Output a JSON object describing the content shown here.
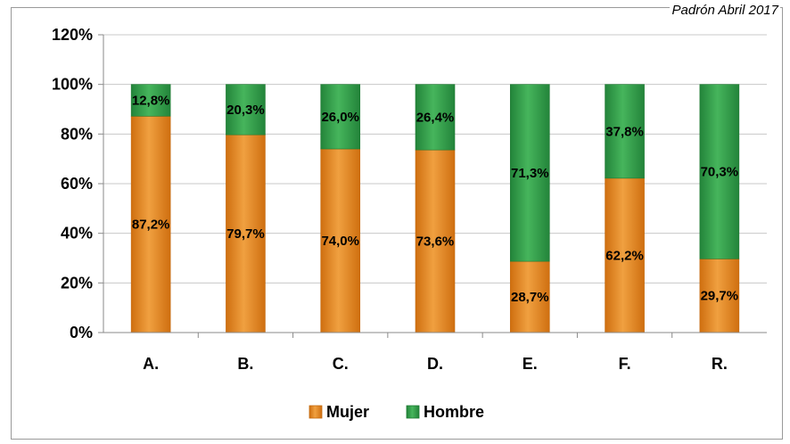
{
  "source_note": "Padrón Abril 2017",
  "colors": {
    "mujer": "#E2841A",
    "hombre": "#2F9A45",
    "grid": "#c8c8c8",
    "axis": "#8a8a8a"
  },
  "chart_data": {
    "type": "bar",
    "stacked": true,
    "categories": [
      "A.",
      "B.",
      "C.",
      "D.",
      "E.",
      "F.",
      "R."
    ],
    "series": [
      {
        "name": "Mujer",
        "values": [
          87.2,
          79.7,
          74.0,
          73.6,
          28.7,
          62.2,
          29.7
        ],
        "labels": [
          "87,2%",
          "79,7%",
          "74,0%",
          "73,6%",
          "28,7%",
          "62,2%",
          "29,7%"
        ]
      },
      {
        "name": "Hombre",
        "values": [
          12.8,
          20.3,
          26.0,
          26.4,
          71.3,
          37.8,
          70.3
        ],
        "labels": [
          "12,8%",
          "20,3%",
          "26,0%",
          "26,4%",
          "71,3%",
          "37,8%",
          "70,3%"
        ]
      }
    ],
    "yticks": [
      "0%",
      "20%",
      "40%",
      "60%",
      "80%",
      "100%",
      "120%"
    ],
    "ylim": [
      0,
      120
    ],
    "grid": true,
    "legend": "bottom"
  }
}
